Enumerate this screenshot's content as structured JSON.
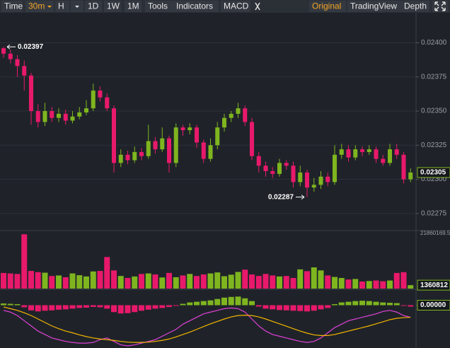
{
  "toolbar": {
    "left": [
      "Time",
      "30m",
      "H",
      "1D",
      "1W",
      "1M",
      "Tools",
      "Indicators",
      "MACD"
    ],
    "right": [
      "Original",
      "TradingView",
      "Depth"
    ],
    "active": [
      "30m",
      "Original"
    ]
  },
  "chart_data": [
    {
      "type": "candlestick",
      "up_color": "#7fb51f",
      "down_color": "#e8196b",
      "grid": true,
      "ylim": [
        0.02263,
        0.02422
      ],
      "yticks": [
        {
          "value": 0.024,
          "label": "0.02400"
        },
        0.02375,
        {
          "value": 0.0235,
          "label": "0.02350"
        },
        0.02325,
        {
          "value": 0.023,
          "label": "0.02300"
        },
        0.02275
      ],
      "opens": [
        0.02396,
        0.02392,
        0.02388,
        0.02383,
        0.02376,
        0.0235,
        0.02342,
        0.0235,
        0.02345,
        0.02348,
        0.02343,
        0.02346,
        0.02349,
        0.02352,
        0.02365,
        0.0236,
        0.02352,
        0.02312,
        0.02318,
        0.02314,
        0.0232,
        0.02317,
        0.02328,
        0.02322,
        0.0233,
        0.02312,
        0.02338,
        0.02336,
        0.02338,
        0.02327,
        0.02315,
        0.02325,
        0.02338,
        0.02345,
        0.02348,
        0.02352,
        0.02342,
        0.02317,
        0.0231,
        0.02306,
        0.02304,
        0.02312,
        0.0231,
        0.02298,
        0.02305,
        0.02294,
        0.02296,
        0.02302,
        0.02298,
        0.02318,
        0.02322,
        0.02316,
        0.02322,
        0.0232,
        0.02322,
        0.02315,
        0.02312,
        0.02322,
        0.02318,
        0.023
      ],
      "highs": [
        0.02397,
        0.02395,
        0.02391,
        0.02387,
        0.02378,
        0.02355,
        0.02356,
        0.02353,
        0.02352,
        0.02351,
        0.0235,
        0.02353,
        0.02358,
        0.0237,
        0.02368,
        0.02363,
        0.02354,
        0.02322,
        0.02321,
        0.02324,
        0.02323,
        0.0234,
        0.02331,
        0.02338,
        0.02332,
        0.02341,
        0.0234,
        0.02341,
        0.0234,
        0.02329,
        0.0233,
        0.02342,
        0.02348,
        0.0235,
        0.02356,
        0.02354,
        0.02345,
        0.0232,
        0.02313,
        0.02309,
        0.02315,
        0.02314,
        0.02313,
        0.0231,
        0.02307,
        0.02301,
        0.02306,
        0.02305,
        0.02325,
        0.02326,
        0.02325,
        0.02325,
        0.02324,
        0.02325,
        0.02324,
        0.02318,
        0.02326,
        0.02326,
        0.0232,
        0.02308
      ],
      "lows": [
        0.02389,
        0.02385,
        0.02375,
        0.02365,
        0.0234,
        0.02338,
        0.02339,
        0.02342,
        0.02342,
        0.0234,
        0.02341,
        0.02344,
        0.02347,
        0.0235,
        0.02357,
        0.0235,
        0.02305,
        0.02309,
        0.02311,
        0.02312,
        0.02314,
        0.02315,
        0.02319,
        0.0232,
        0.02305,
        0.02309,
        0.02332,
        0.02333,
        0.02323,
        0.02312,
        0.02313,
        0.02322,
        0.02335,
        0.02342,
        0.02345,
        0.02339,
        0.02314,
        0.02305,
        0.02302,
        0.02301,
        0.02302,
        0.02307,
        0.02294,
        0.02295,
        0.02287,
        0.02291,
        0.02293,
        0.02295,
        0.02296,
        0.02315,
        0.02313,
        0.02314,
        0.02317,
        0.02318,
        0.02312,
        0.0231,
        0.0231,
        0.02315,
        0.02297,
        0.02298
      ],
      "closes": [
        0.02392,
        0.02388,
        0.02383,
        0.02376,
        0.0235,
        0.02342,
        0.0235,
        0.02345,
        0.02348,
        0.02343,
        0.02346,
        0.02349,
        0.02352,
        0.02365,
        0.0236,
        0.02352,
        0.02312,
        0.02318,
        0.02314,
        0.0232,
        0.02317,
        0.02328,
        0.02322,
        0.0233,
        0.02312,
        0.02338,
        0.02336,
        0.02338,
        0.02327,
        0.02315,
        0.02325,
        0.02338,
        0.02345,
        0.02348,
        0.02352,
        0.02342,
        0.02317,
        0.0231,
        0.02306,
        0.02304,
        0.02312,
        0.0231,
        0.02298,
        0.02305,
        0.02294,
        0.02296,
        0.02302,
        0.02298,
        0.02318,
        0.02322,
        0.02316,
        0.02322,
        0.0232,
        0.02322,
        0.02315,
        0.02312,
        0.02322,
        0.02318,
        0.023,
        0.02305
      ]
    },
    {
      "type": "volume",
      "ylim": [
        0,
        21860169.5
      ],
      "yticks": [
        21860169.5
      ],
      "values": [
        6200000,
        6000000,
        5800000,
        21500000,
        7000000,
        6500000,
        6300000,
        5000000,
        5200000,
        4500000,
        6000000,
        5300000,
        4800000,
        6800000,
        7000000,
        12500000,
        7200000,
        5000000,
        4200000,
        4800000,
        5800000,
        6000000,
        5600000,
        4400000,
        6200000,
        4500000,
        5200000,
        5800000,
        5000000,
        5600000,
        6000000,
        6400000,
        4900000,
        5500000,
        6600000,
        7500000,
        5600000,
        5000000,
        5800000,
        5200000,
        4800000,
        5000000,
        4200000,
        7600000,
        6900000,
        8400000,
        7200000,
        5200000,
        4600000,
        4200000,
        3600000,
        3800000,
        2800000,
        3000000,
        3200000,
        2900000,
        3200000,
        6200000,
        6500000,
        1360812
      ]
    },
    {
      "type": "macd",
      "ylim": [
        -0.00012,
        4e-05
      ],
      "yticks": [
        {
          "value": 0,
          "label": "0.00000"
        }
      ],
      "histogram": [
        5e-06,
        4e-06,
        3e-06,
        -6e-06,
        -1.5e-05,
        -1.8e-05,
        -1.6e-05,
        -1.5e-05,
        -1.3e-05,
        -1.2e-05,
        -1e-05,
        -8e-06,
        -7e-06,
        -5e-06,
        -6e-06,
        -1e-05,
        -2e-05,
        -2.4e-05,
        -2.3e-05,
        -2e-05,
        -1.6e-05,
        -1.3e-05,
        -1e-05,
        -8e-06,
        -5e-06,
        -2e-06,
        4e-06,
        8e-06,
        1e-05,
        1.2e-05,
        1.4e-05,
        1.8e-05,
        2.2e-05,
        2.4e-05,
        2.5e-05,
        2e-05,
        1.2e-05,
        -4e-06,
        -1e-05,
        -1.2e-05,
        -1.4e-05,
        -1.5e-05,
        -1.6e-05,
        -1.7e-05,
        -1.8e-05,
        -1.6e-05,
        -1.2e-05,
        -8e-06,
        3e-06,
        8e-06,
        1e-05,
        1.2e-05,
        1.3e-05,
        1.2e-05,
        1e-05,
        8e-06,
        7e-06,
        6e-06,
        -2e-06,
        -4e-06
      ],
      "series": [
        {
          "color": "#e040d8",
          "values": [
            -1.5e-05,
            -2e-05,
            -3e-05,
            -4.5e-05,
            -6e-05,
            -7.5e-05,
            -8.5e-05,
            -9.5e-05,
            -0.0001,
            -0.000105,
            -0.000108,
            -0.00011,
            -0.00011,
            -0.000108,
            -0.0001,
            -9.5e-05,
            -0.000105,
            -0.000115,
            -0.000118,
            -0.000115,
            -0.00011,
            -0.000105,
            -0.0001,
            -9e-05,
            -8e-05,
            -7e-05,
            -5.5e-05,
            -4.5e-05,
            -3.5e-05,
            -2.5e-05,
            -2e-05,
            -1.5e-05,
            -1e-05,
            -8e-06,
            -1e-05,
            -2e-05,
            -4e-05,
            -6e-05,
            -7.5e-05,
            -8.5e-05,
            -9e-05,
            -9.5e-05,
            -0.0001,
            -0.000105,
            -0.000108,
            -0.000105,
            -9.5e-05,
            -8e-05,
            -6.5e-05,
            -5.5e-05,
            -4.5e-05,
            -4e-05,
            -3.5e-05,
            -3e-05,
            -2.5e-05,
            -1.8e-05,
            -1.5e-05,
            -2e-05,
            -3e-05,
            -3.5e-05
          ]
        },
        {
          "color": "#f5b400",
          "values": [
            -5e-06,
            -1e-05,
            -1.5e-05,
            -2.2e-05,
            -3e-05,
            -4e-05,
            -5e-05,
            -6e-05,
            -6.8e-05,
            -7.5e-05,
            -8e-05,
            -8.6e-05,
            -9.1e-05,
            -9.5e-05,
            -9.8e-05,
            -0.0001,
            -0.000102,
            -0.000105,
            -0.000107,
            -0.000108,
            -0.000108,
            -0.000107,
            -0.000105,
            -0.000102,
            -9.8e-05,
            -9.2e-05,
            -8.5e-05,
            -7.8e-05,
            -7e-05,
            -6.2e-05,
            -5.4e-05,
            -4.7e-05,
            -4e-05,
            -3.4e-05,
            -3e-05,
            -2.9e-05,
            -3e-05,
            -3.4e-05,
            -4e-05,
            -4.7e-05,
            -5.4e-05,
            -6.1e-05,
            -6.8e-05,
            -7.5e-05,
            -8.1e-05,
            -8.6e-05,
            -8.8e-05,
            -8.8e-05,
            -8.5e-05,
            -8e-05,
            -7.5e-05,
            -7e-05,
            -6.5e-05,
            -6e-05,
            -5.4e-05,
            -4.8e-05,
            -4.2e-05,
            -3.8e-05,
            -3.6e-05,
            -3.5e-05
          ]
        }
      ]
    }
  ]
}
